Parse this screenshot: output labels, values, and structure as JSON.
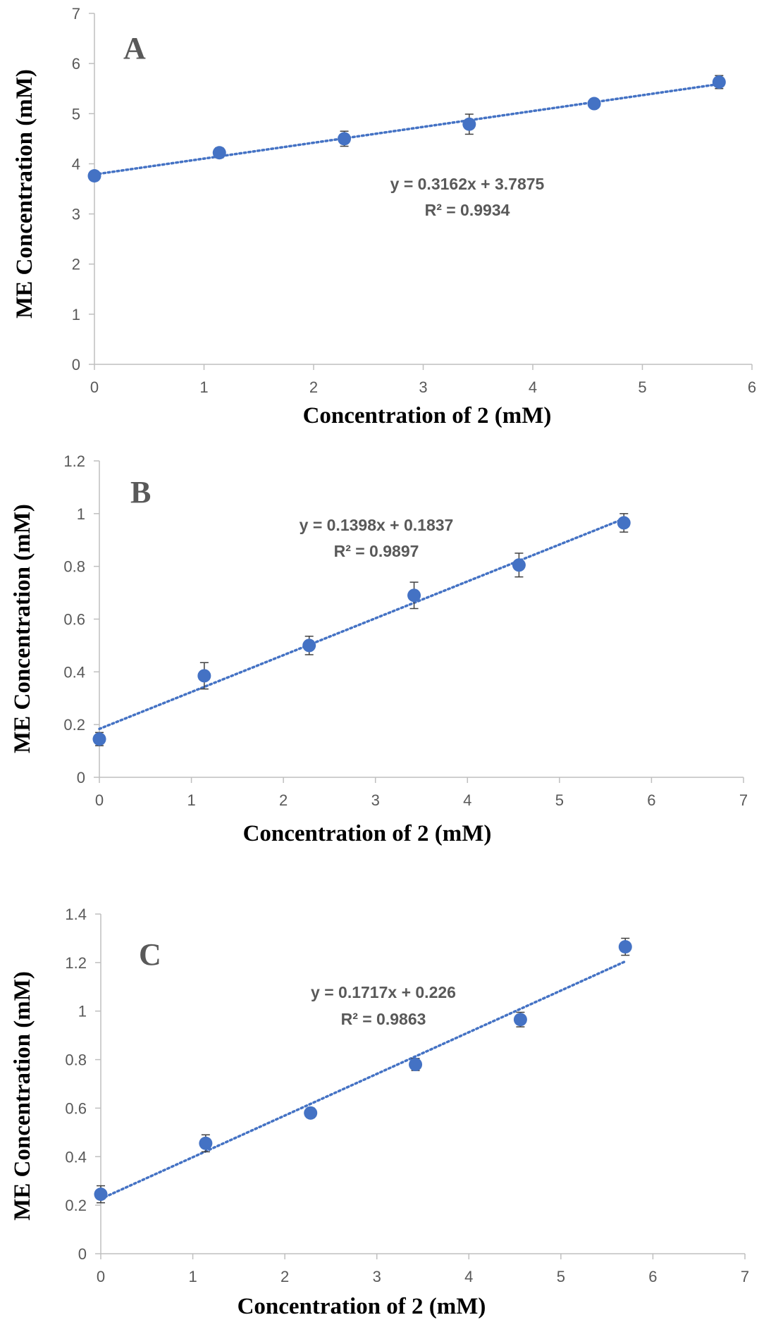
{
  "figure": {
    "marker_color": "#4472C4",
    "trend_color": "#4472C4",
    "axis_color": "#BFBFBF",
    "errorbar_color": "#404040"
  },
  "chart_data": [
    {
      "type": "scatter",
      "panel_label": "A",
      "xlabel": "Concentration of 2 (mM)",
      "ylabel": "ME Concentration  (mM)",
      "xlim": [
        0,
        6
      ],
      "ylim": [
        0,
        7
      ],
      "xticks": [
        "0",
        "1",
        "2",
        "3",
        "4",
        "5",
        "6"
      ],
      "yticks": [
        "0",
        "1",
        "2",
        "3",
        "4",
        "5",
        "6",
        "7"
      ],
      "x": [
        0,
        1.14,
        2.28,
        3.42,
        4.56,
        5.7
      ],
      "y": [
        3.76,
        4.22,
        4.5,
        4.79,
        5.2,
        5.63
      ],
      "error": [
        0.08,
        0.1,
        0.15,
        0.2,
        0.07,
        0.13
      ],
      "trendline": {
        "slope": 0.3162,
        "intercept": 3.7875,
        "x_range": [
          0,
          5.7
        ]
      },
      "equation": "y = 0.3162x + 3.7875",
      "r_squared": "R² = 0.9934"
    },
    {
      "type": "scatter",
      "panel_label": "B",
      "xlabel": "Concentration of 2 (mM)",
      "ylabel": "ME Concentration  (mM)",
      "xlim": [
        0,
        7
      ],
      "ylim": [
        0,
        1.2
      ],
      "xticks": [
        "0",
        "1",
        "2",
        "3",
        "4",
        "5",
        "6",
        "7"
      ],
      "yticks": [
        "0",
        "0.2",
        "0.4",
        "0.6",
        "0.8",
        "1",
        "1.2"
      ],
      "x": [
        0,
        1.14,
        2.28,
        3.42,
        4.56,
        5.7
      ],
      "y": [
        0.145,
        0.385,
        0.5,
        0.69,
        0.805,
        0.965
      ],
      "error": [
        0.025,
        0.05,
        0.035,
        0.05,
        0.045,
        0.035
      ],
      "trendline": {
        "slope": 0.1398,
        "intercept": 0.1837,
        "x_range": [
          0,
          5.7
        ]
      },
      "equation": "y = 0.1398x + 0.1837",
      "r_squared": "R² = 0.9897"
    },
    {
      "type": "scatter",
      "panel_label": "C",
      "xlabel": "Concentration of 2 (mM)",
      "ylabel": "ME Concentration  (mM)",
      "xlim": [
        0,
        7
      ],
      "ylim": [
        0,
        1.4
      ],
      "xticks": [
        "0",
        "1",
        "2",
        "3",
        "4",
        "5",
        "6",
        "7"
      ],
      "yticks": [
        "0",
        "0.2",
        "0.4",
        "0.6",
        "0.8",
        "1",
        "1.2",
        "1.4"
      ],
      "x": [
        0,
        1.14,
        2.28,
        3.42,
        4.56,
        5.7
      ],
      "y": [
        0.245,
        0.455,
        0.58,
        0.78,
        0.965,
        1.265
      ],
      "error": [
        0.035,
        0.035,
        0.02,
        0.025,
        0.03,
        0.035
      ],
      "trendline": {
        "slope": 0.1717,
        "intercept": 0.226,
        "x_range": [
          0,
          5.7
        ]
      },
      "equation": "y = 0.1717x + 0.226",
      "r_squared": "R² = 0.9863"
    }
  ]
}
